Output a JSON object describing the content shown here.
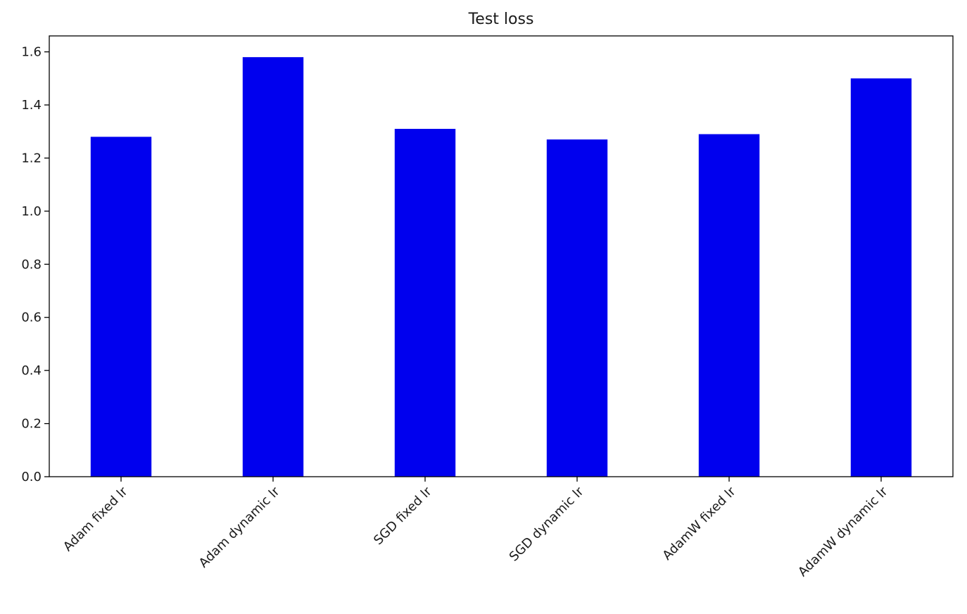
{
  "chart_data": {
    "type": "bar",
    "title": "Test loss",
    "xlabel": "",
    "ylabel": "",
    "categories": [
      "Adam fixed lr",
      "Adam dynamic lr",
      "SGD fixed lr",
      "SGD dynamic lr",
      "AdamW fixed lr",
      "AdamW dynamic lr"
    ],
    "values": [
      1.28,
      1.58,
      1.31,
      1.27,
      1.29,
      1.5
    ],
    "yticks": [
      "0.0",
      "0.2",
      "0.4",
      "0.6",
      "0.8",
      "1.0",
      "1.2",
      "1.4",
      "1.6"
    ],
    "ylim": [
      0,
      1.66
    ],
    "bar_color": "#0000ee",
    "grid": false,
    "legend": "none"
  }
}
